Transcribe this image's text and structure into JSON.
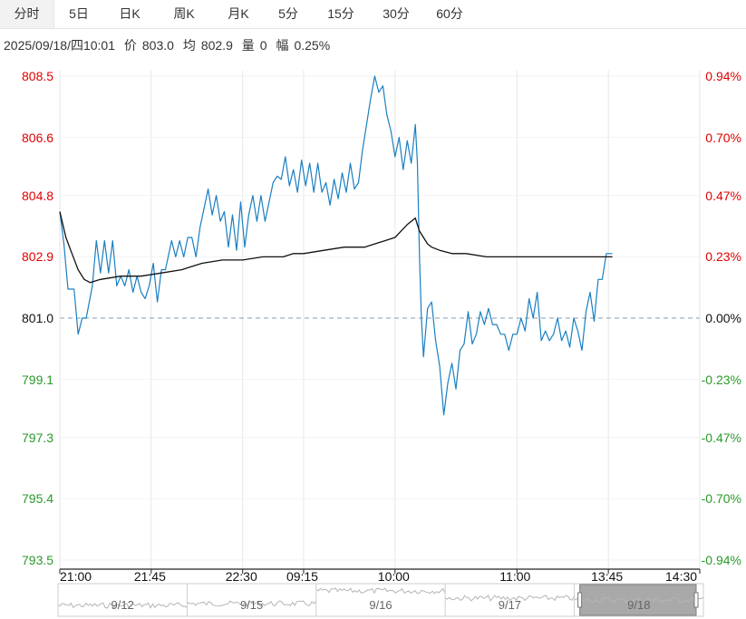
{
  "tabs": [
    {
      "label": "分时",
      "active": true
    },
    {
      "label": "5日",
      "active": false
    },
    {
      "label": "日K",
      "active": false
    },
    {
      "label": "周K",
      "active": false
    },
    {
      "label": "月K",
      "active": false
    },
    {
      "label": "5分",
      "active": false
    },
    {
      "label": "15分",
      "active": false
    },
    {
      "label": "30分",
      "active": false
    },
    {
      "label": "60分",
      "active": false
    }
  ],
  "info": {
    "datetime": "2025/09/18/四10:01",
    "price_label": "价",
    "price": "803.0",
    "avg_label": "均",
    "avg": "802.9",
    "volume_label": "量",
    "volume": "0",
    "amplitude_label": "幅",
    "amplitude": "0.25%"
  },
  "colors": {
    "up": "#e00000",
    "down": "#2a9a2a",
    "price_line": "#1a7fc1",
    "avg_line": "#111111",
    "grid": "#e6e6e6"
  },
  "chart_data": {
    "type": "line",
    "reference_price": 801.0,
    "y_ticks": [
      "808.5",
      "806.6",
      "804.8",
      "802.9",
      "801.0",
      "799.1",
      "797.3",
      "795.4",
      "793.5"
    ],
    "y_values": [
      808.5,
      806.6,
      804.8,
      802.9,
      801.0,
      799.1,
      797.3,
      795.4,
      793.5
    ],
    "pct_ticks": [
      "0.94%",
      "0.70%",
      "0.47%",
      "0.23%",
      "0.00%",
      "-0.23%",
      "-0.47%",
      "-0.70%",
      "-0.94%"
    ],
    "ylim": [
      793.5,
      808.5
    ],
    "x_ticks": [
      "21:00",
      "21:45",
      "22:30",
      "09:15",
      "10:00",
      "11:00",
      "13:45",
      "14:30"
    ],
    "x_tick_index": [
      0,
      45,
      90,
      120,
      165,
      225,
      270,
      315
    ],
    "session_length": 315,
    "series": [
      {
        "kind": "price",
        "points": [
          [
            0,
            804.3
          ],
          [
            2,
            803.3
          ],
          [
            4,
            801.9
          ],
          [
            7,
            801.9
          ],
          [
            9,
            800.5
          ],
          [
            11,
            801.0
          ],
          [
            13,
            801.0
          ],
          [
            16,
            802.0
          ],
          [
            18,
            803.4
          ],
          [
            20,
            802.4
          ],
          [
            22,
            803.4
          ],
          [
            24,
            802.4
          ],
          [
            26,
            803.4
          ],
          [
            28,
            802.0
          ],
          [
            30,
            802.3
          ],
          [
            32,
            802.0
          ],
          [
            34,
            802.5
          ],
          [
            36,
            801.8
          ],
          [
            38,
            802.3
          ],
          [
            40,
            801.8
          ],
          [
            42,
            801.6
          ],
          [
            44,
            802.0
          ],
          [
            46,
            802.7
          ],
          [
            48,
            801.5
          ],
          [
            50,
            802.5
          ],
          [
            52,
            802.5
          ],
          [
            55,
            803.4
          ],
          [
            57,
            802.9
          ],
          [
            59,
            803.4
          ],
          [
            61,
            802.9
          ],
          [
            63,
            803.5
          ],
          [
            65,
            803.5
          ],
          [
            67,
            802.9
          ],
          [
            69,
            803.8
          ],
          [
            71,
            804.4
          ],
          [
            73,
            805.0
          ],
          [
            75,
            804.2
          ],
          [
            77,
            804.8
          ],
          [
            79,
            804.0
          ],
          [
            81,
            804.3
          ],
          [
            83,
            803.2
          ],
          [
            85,
            804.2
          ],
          [
            87,
            803.1
          ],
          [
            89,
            804.6
          ],
          [
            91,
            803.2
          ],
          [
            93,
            804.2
          ],
          [
            95,
            804.8
          ],
          [
            97,
            804.0
          ],
          [
            99,
            804.8
          ],
          [
            101,
            804.0
          ],
          [
            103,
            804.6
          ],
          [
            105,
            805.2
          ],
          [
            107,
            805.4
          ],
          [
            109,
            805.3
          ],
          [
            111,
            806.0
          ],
          [
            113,
            805.1
          ],
          [
            115,
            805.6
          ],
          [
            117,
            804.9
          ],
          [
            119,
            805.9
          ],
          [
            121,
            805.1
          ],
          [
            123,
            805.8
          ],
          [
            125,
            804.9
          ],
          [
            127,
            805.8
          ],
          [
            129,
            804.9
          ],
          [
            131,
            805.2
          ],
          [
            133,
            804.5
          ],
          [
            135,
            805.3
          ],
          [
            137,
            804.7
          ],
          [
            139,
            805.5
          ],
          [
            141,
            804.9
          ],
          [
            143,
            805.8
          ],
          [
            145,
            805.0
          ],
          [
            147,
            805.2
          ],
          [
            149,
            806.2
          ],
          [
            151,
            807.0
          ],
          [
            153,
            807.8
          ],
          [
            155,
            808.5
          ],
          [
            157,
            808.0
          ],
          [
            159,
            808.2
          ],
          [
            161,
            807.3
          ],
          [
            163,
            806.8
          ],
          [
            165,
            806.0
          ],
          [
            167,
            806.6
          ],
          [
            169,
            805.6
          ],
          [
            171,
            806.5
          ],
          [
            173,
            805.8
          ],
          [
            175,
            807.0
          ],
          [
            176,
            805.8
          ],
          [
            177,
            803.0
          ],
          [
            178,
            801.0
          ],
          [
            179,
            799.8
          ],
          [
            181,
            801.3
          ],
          [
            183,
            801.5
          ],
          [
            185,
            800.3
          ],
          [
            187,
            799.5
          ],
          [
            189,
            798.0
          ],
          [
            191,
            799.0
          ],
          [
            193,
            799.6
          ],
          [
            195,
            798.8
          ],
          [
            197,
            800.0
          ],
          [
            199,
            800.2
          ],
          [
            201,
            801.2
          ],
          [
            203,
            800.2
          ],
          [
            205,
            800.5
          ],
          [
            207,
            801.2
          ],
          [
            209,
            800.8
          ],
          [
            211,
            801.3
          ],
          [
            213,
            800.8
          ],
          [
            215,
            800.8
          ],
          [
            217,
            800.5
          ],
          [
            219,
            800.5
          ],
          [
            221,
            800.0
          ],
          [
            223,
            800.5
          ],
          [
            225,
            800.5
          ],
          [
            227,
            801.0
          ],
          [
            229,
            800.6
          ],
          [
            231,
            801.6
          ],
          [
            233,
            801.0
          ],
          [
            235,
            801.8
          ],
          [
            237,
            800.3
          ],
          [
            239,
            800.6
          ],
          [
            241,
            800.3
          ],
          [
            243,
            800.5
          ],
          [
            245,
            801.0
          ],
          [
            247,
            800.3
          ],
          [
            249,
            800.6
          ],
          [
            251,
            800.1
          ],
          [
            253,
            801.0
          ],
          [
            255,
            800.6
          ],
          [
            257,
            800.0
          ],
          [
            259,
            801.2
          ],
          [
            261,
            801.8
          ],
          [
            263,
            800.9
          ],
          [
            265,
            802.2
          ],
          [
            267,
            802.2
          ],
          [
            269,
            803.0
          ],
          [
            272,
            803.0
          ]
        ]
      },
      {
        "kind": "average",
        "points": [
          [
            0,
            804.3
          ],
          [
            3,
            803.5
          ],
          [
            6,
            803.0
          ],
          [
            9,
            802.5
          ],
          [
            12,
            802.2
          ],
          [
            15,
            802.1
          ],
          [
            20,
            802.2
          ],
          [
            30,
            802.3
          ],
          [
            40,
            802.3
          ],
          [
            50,
            802.4
          ],
          [
            60,
            802.5
          ],
          [
            65,
            802.6
          ],
          [
            70,
            802.7
          ],
          [
            80,
            802.8
          ],
          [
            90,
            802.8
          ],
          [
            100,
            802.9
          ],
          [
            110,
            802.9
          ],
          [
            115,
            803.0
          ],
          [
            120,
            803.0
          ],
          [
            130,
            803.1
          ],
          [
            140,
            803.2
          ],
          [
            150,
            803.2
          ],
          [
            155,
            803.3
          ],
          [
            160,
            803.4
          ],
          [
            165,
            803.5
          ],
          [
            168,
            803.7
          ],
          [
            171,
            803.9
          ],
          [
            173,
            804.0
          ],
          [
            175,
            804.1
          ],
          [
            177,
            803.7
          ],
          [
            179,
            803.5
          ],
          [
            181,
            803.3
          ],
          [
            183,
            803.2
          ],
          [
            187,
            803.1
          ],
          [
            193,
            803.0
          ],
          [
            200,
            803.0
          ],
          [
            210,
            802.9
          ],
          [
            230,
            802.9
          ],
          [
            250,
            802.9
          ],
          [
            272,
            802.9
          ]
        ]
      }
    ]
  },
  "navigator": {
    "days": [
      "9/12",
      "9/15",
      "9/16",
      "9/17",
      "9/18"
    ]
  }
}
